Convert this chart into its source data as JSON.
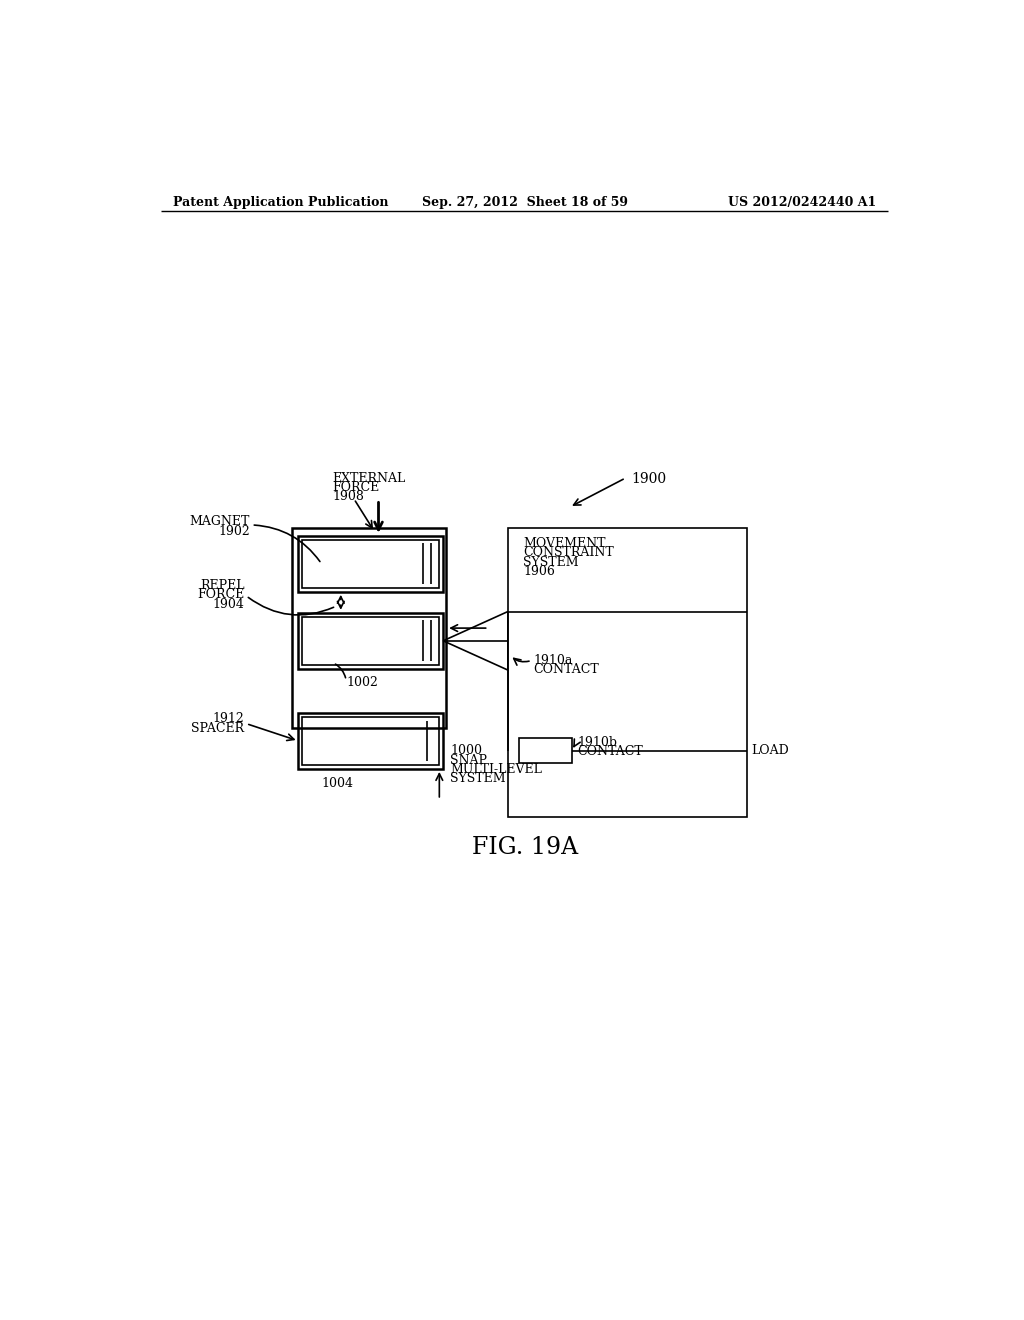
{
  "background_color": "#ffffff",
  "header_left": "Patent Application Publication",
  "header_center": "Sep. 27, 2012  Sheet 18 of 59",
  "header_right": "US 2012/0242440 A1",
  "figure_label": "FIG. 19A"
}
